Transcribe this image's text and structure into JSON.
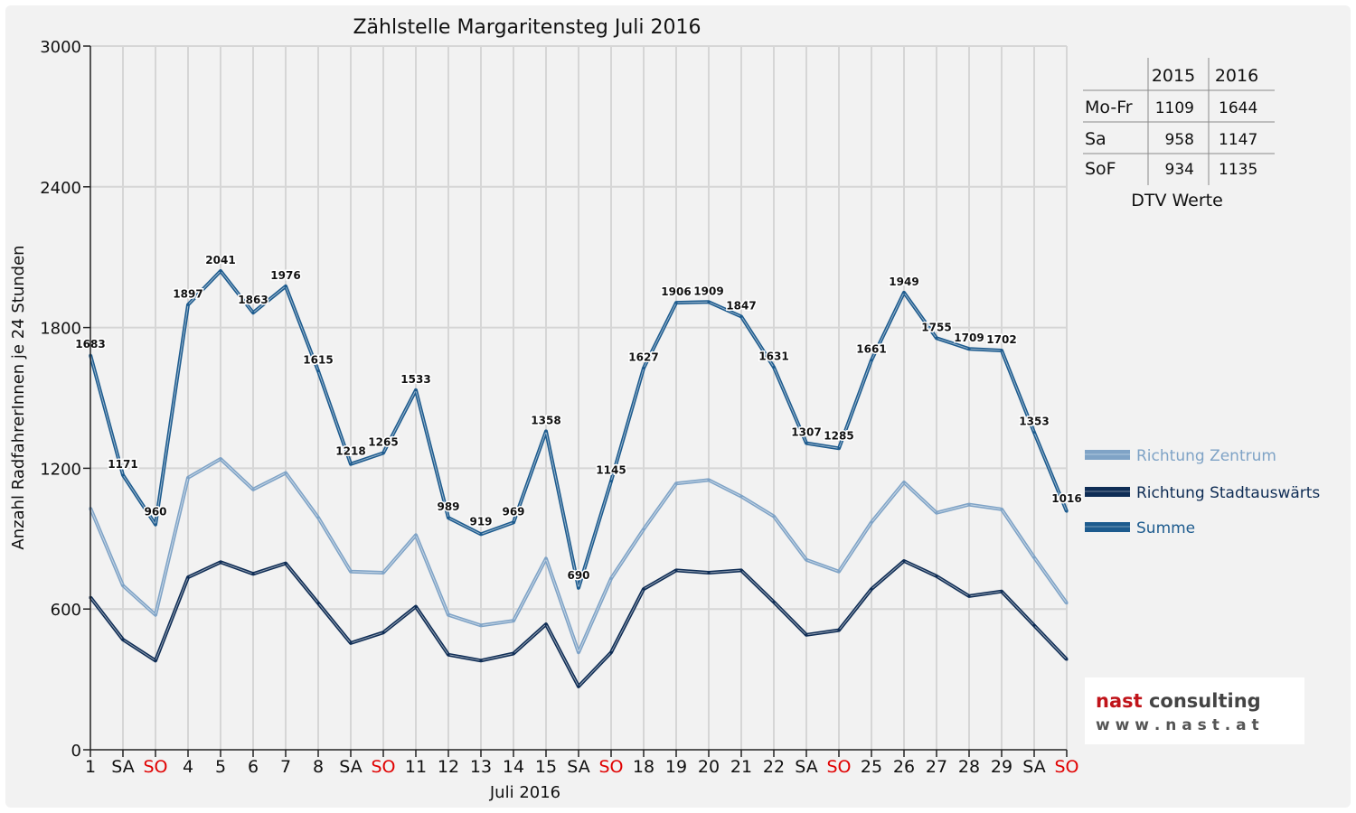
{
  "chart_data": {
    "type": "line",
    "title": "Zählstelle Margaritensteg Juli 2016",
    "xlabel": "Juli 2016",
    "ylabel": "Anzahl RadfahrerInnen je 24 Stunden",
    "ylim": [
      0,
      3000
    ],
    "yticks": [
      "0",
      "600",
      "1200",
      "1800",
      "2400",
      "3000"
    ],
    "grid": true,
    "legend_position": "right",
    "categories": [
      "1",
      "SA",
      "SO",
      "4",
      "5",
      "6",
      "7",
      "8",
      "SA",
      "SO",
      "11",
      "12",
      "13",
      "14",
      "15",
      "SA",
      "SO",
      "18",
      "19",
      "20",
      "21",
      "22",
      "SA",
      "SO",
      "25",
      "26",
      "27",
      "28",
      "29",
      "SA",
      "SO"
    ],
    "sunday_color": "#e00000",
    "series": [
      {
        "name": "Richtung Zentrum",
        "color": "#7fa3c6",
        "values": [
          1030,
          700,
          575,
          1160,
          1240,
          1110,
          1180,
          990,
          760,
          755,
          915,
          575,
          530,
          550,
          815,
          415,
          730,
          940,
          1135,
          1150,
          1080,
          995,
          810,
          760,
          970,
          1140,
          1010,
          1045,
          1025,
          820,
          625
        ]
      },
      {
        "name": "Richtung Stadtauswärts",
        "color": "#0f2d55",
        "values": [
          650,
          470,
          380,
          735,
          800,
          750,
          795,
          625,
          455,
          500,
          610,
          405,
          380,
          410,
          535,
          270,
          415,
          685,
          765,
          755,
          765,
          630,
          490,
          510,
          685,
          805,
          740,
          655,
          675,
          530,
          385
        ]
      },
      {
        "name": "Summe",
        "color": "#1d5b8e",
        "values": [
          1683,
          1171,
          960,
          1897,
          2041,
          1863,
          1976,
          1615,
          1218,
          1265,
          1533,
          989,
          919,
          969,
          1358,
          690,
          1145,
          1627,
          1906,
          1909,
          1847,
          1631,
          1307,
          1285,
          1661,
          1949,
          1755,
          1709,
          1702,
          1353,
          1016
        ]
      }
    ],
    "data_labels": [
      "1683",
      "1171",
      "960",
      "1897",
      "2041",
      "1863",
      "1976",
      "1615",
      "1218",
      "1265",
      "1533",
      "989",
      "919",
      "969",
      "1358",
      "690",
      "1145",
      "1627",
      "1906",
      "1909",
      "1847",
      "1631",
      "1307",
      "1285",
      "1661",
      "1949",
      "1755",
      "1709",
      "1702",
      "1353",
      "1016"
    ]
  },
  "dtv_table": {
    "caption": "DTV Werte",
    "headers": [
      "",
      "2015",
      "2016"
    ],
    "rows": [
      {
        "label": "Mo-Fr",
        "v2015": "1109",
        "v2016": "1644"
      },
      {
        "label": "Sa",
        "v2015": "958",
        "v2016": "1147"
      },
      {
        "label": "SoF",
        "v2015": "934",
        "v2016": "1135"
      }
    ]
  },
  "logo": {
    "name": "nast consulting",
    "url": "w w w . n a s t . a t",
    "colors": {
      "nast": "#c0141a",
      "consulting": "#444444",
      "url": "#555555"
    }
  }
}
